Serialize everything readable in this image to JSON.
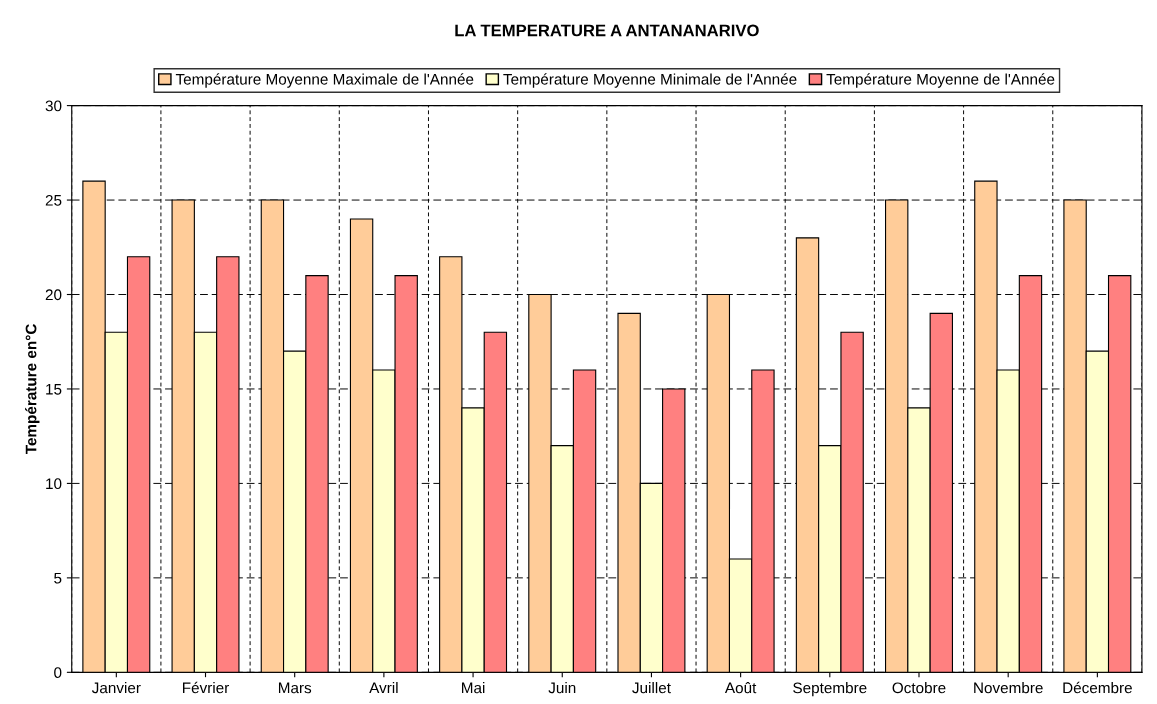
{
  "chart_data": {
    "type": "bar",
    "title": "LA TEMPERATURE A ANTANANARIVO",
    "ylabel": "Température en°C",
    "categories": [
      "Janvier",
      "Février",
      "Mars",
      "Avril",
      "Mai",
      "Juin",
      "Juillet",
      "Août",
      "Septembre",
      "Octobre",
      "Novembre",
      "Décembre"
    ],
    "series": [
      {
        "name": "Température Moyenne Maximale de l'Année",
        "color": "#ffcc99",
        "values": [
          26,
          25,
          25,
          24,
          22,
          20,
          19,
          20,
          23,
          25,
          26,
          25
        ]
      },
      {
        "name": "Température Moyenne Minimale de l'Année",
        "color": "#ffffcc",
        "values": [
          18,
          18,
          17,
          16,
          14,
          12,
          10,
          6,
          12,
          14,
          16,
          17
        ]
      },
      {
        "name": "Température Moyenne de l'Année",
        "color": "#ff8080",
        "values": [
          22,
          22,
          21,
          21,
          18,
          16,
          15,
          16,
          18,
          19,
          21,
          21
        ]
      }
    ],
    "ylim": [
      0,
      30
    ],
    "yticks": [
      0,
      5,
      10,
      15,
      20,
      25,
      30
    ],
    "grid": true,
    "legend": "top"
  }
}
